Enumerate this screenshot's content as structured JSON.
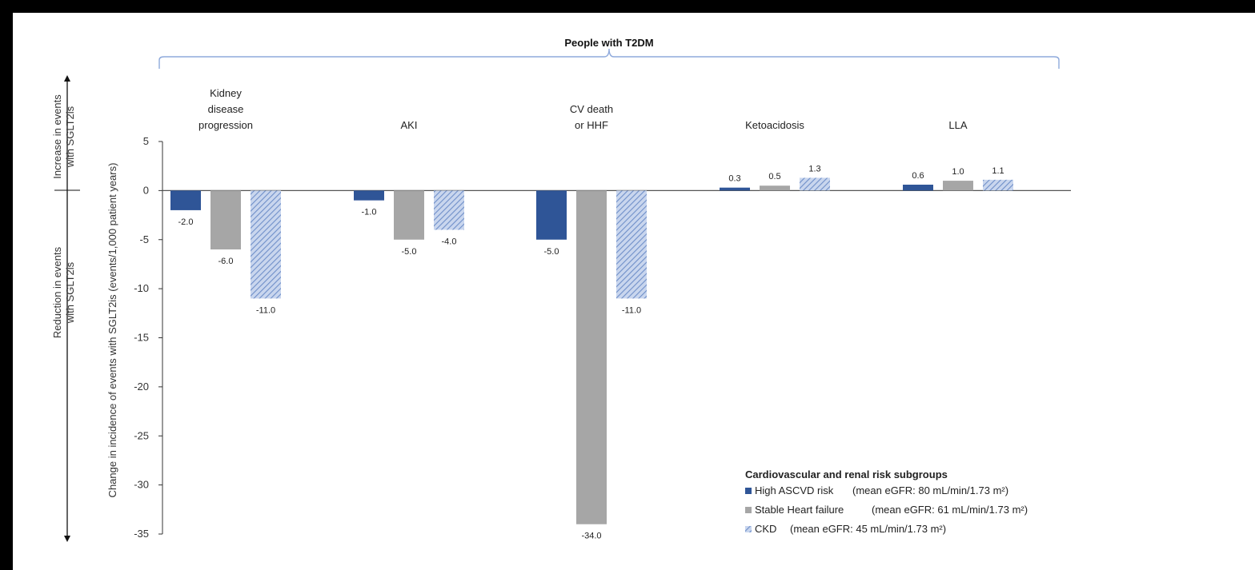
{
  "chart_data": {
    "type": "bar",
    "title": "People with T2DM",
    "ylabel": "Change in incidence of events with SGLT2is (events/1,000 patient years)",
    "side_labels": {
      "increase": [
        "Increase in events",
        "with SGLT2is"
      ],
      "reduction": [
        "Reduction in events",
        "with SGLT2is"
      ]
    },
    "categories": [
      [
        "Kidney",
        "disease",
        "progression"
      ],
      [
        "AKI"
      ],
      [
        "CV death",
        "or HHF"
      ],
      [
        "Ketoacidosis"
      ],
      [
        "LLA"
      ]
    ],
    "ylim": [
      -35,
      5
    ],
    "yticks": [
      5,
      0,
      -5,
      -10,
      -15,
      -20,
      -25,
      -30,
      -35
    ],
    "ytick_labels": [
      "5",
      "0",
      "-5",
      "-10",
      "-15",
      "-20",
      "-25",
      "-30",
      "-35"
    ],
    "series": [
      {
        "name": "High ASCVD risk",
        "values": [
          -2.0,
          -1.0,
          -5.0,
          0.3,
          0.6
        ],
        "labels": [
          "-2.0",
          "-1.0",
          "-5.0",
          "0.3",
          "0.6"
        ],
        "color": "#2f5597",
        "pattern": "solid"
      },
      {
        "name": "Stable Heart failure",
        "values": [
          -6.0,
          -5.0,
          -34.0,
          0.5,
          1.0
        ],
        "labels": [
          "-6.0",
          "-5.0",
          "-34.0",
          "0.5",
          "1.0"
        ],
        "color": "#a6a6a6",
        "pattern": "solid"
      },
      {
        "name": "CKD",
        "values": [
          -11.0,
          -4.0,
          -11.0,
          1.3,
          1.1
        ],
        "labels": [
          "-11.0",
          "-4.0",
          "-11.0",
          "1.3",
          "1.1"
        ],
        "color": "#8faadc",
        "pattern": "hatch"
      }
    ],
    "legend": {
      "title": "Cardiovascular and renal risk subgroups",
      "position": "bottom-right",
      "entries": [
        {
          "name": "High ASCVD risk",
          "detail": "(mean eGFR: 80 mL/min/1.73 m²)"
        },
        {
          "name": "Stable Heart failure",
          "detail": "(mean eGFR: 61 mL/min/1.73 m²)"
        },
        {
          "name": "CKD",
          "detail": "(mean eGFR: 45 mL/min/1.73 m²)"
        }
      ]
    },
    "grid": false
  }
}
